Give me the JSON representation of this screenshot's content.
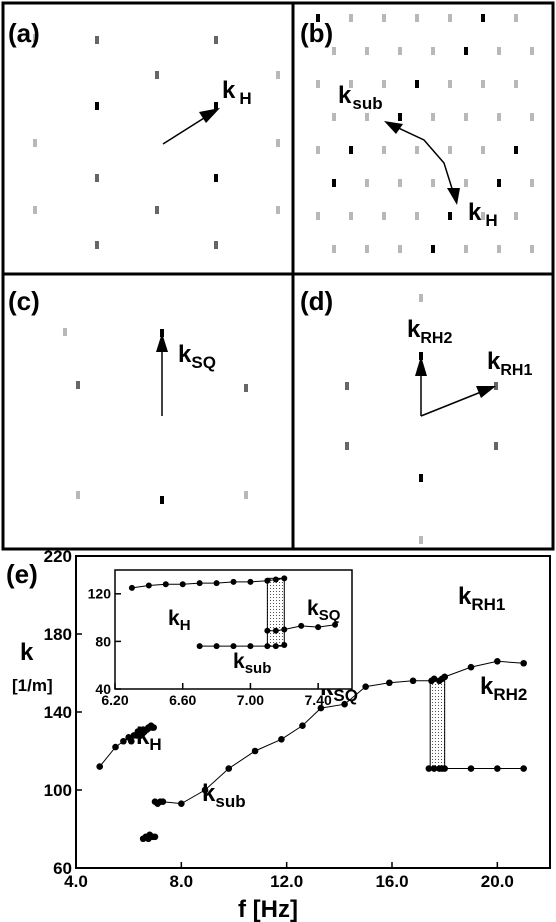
{
  "panels": {
    "a": {
      "label": "(a)",
      "vectors": [
        {
          "name": "k",
          "sub": "H"
        }
      ]
    },
    "b": {
      "label": "(b)",
      "vectors": [
        {
          "name": "k",
          "sub": "sub"
        },
        {
          "name": "k",
          "sub": "H"
        }
      ]
    },
    "c": {
      "label": "(c)",
      "vectors": [
        {
          "name": "k",
          "sub": "SQ"
        }
      ]
    },
    "d": {
      "label": "(d)",
      "vectors": [
        {
          "name": "k",
          "sub": "RH2"
        },
        {
          "name": "k",
          "sub": "RH1"
        }
      ]
    }
  },
  "chart_data": [
    {
      "type": "line",
      "panel_label": "(e)",
      "ylabel": "k",
      "ylabel_unit": "[1/m]",
      "xlabel": "f [Hz]",
      "xlim": [
        4.0,
        22.0
      ],
      "ylim": [
        60,
        220
      ],
      "xticks": [
        "4.0",
        "8.0",
        "12.0",
        "16.0",
        "20.0"
      ],
      "xtick_values": [
        4,
        8,
        12,
        16,
        20
      ],
      "yticks": [
        "60",
        "100",
        "140",
        "180",
        "220"
      ],
      "ytick_values": [
        60,
        100,
        140,
        180,
        220
      ],
      "series": [
        {
          "name": "k_H",
          "label": {
            "name": "k",
            "sub": "H"
          },
          "x": [
            4.9,
            5.5,
            5.8,
            6.0,
            6.1,
            6.2,
            6.3,
            6.35,
            6.45,
            6.55,
            6.6,
            6.7,
            6.75,
            6.8,
            6.85,
            6.9,
            6.95
          ],
          "y": [
            112,
            122,
            125,
            127,
            125,
            128,
            128,
            130,
            129,
            131,
            130,
            131,
            132,
            132,
            133,
            132,
            132
          ]
        },
        {
          "name": "k_sub",
          "label": {
            "name": "k",
            "sub": "sub"
          },
          "x": [
            6.55,
            6.65,
            6.75,
            6.8,
            6.9,
            7.0
          ],
          "y": [
            75,
            76,
            75,
            77,
            76,
            76
          ]
        },
        {
          "name": "k_SQ",
          "label": {
            "name": "k",
            "sub": "SQ"
          },
          "x": [
            7.0,
            7.1,
            7.2,
            7.3,
            8.0,
            8.9,
            9.8,
            10.8,
            11.8,
            12.6,
            13.3,
            14.2,
            15.0,
            15.9,
            16.8,
            17.5,
            17.6,
            17.8,
            17.9,
            18.0
          ],
          "y": [
            94,
            93,
            94,
            94,
            93,
            100,
            111,
            120,
            126,
            133,
            142,
            144,
            153,
            155,
            156,
            156,
            157,
            156,
            157,
            158
          ]
        },
        {
          "name": "k_RH1",
          "label": {
            "name": "k",
            "sub": "RH1"
          },
          "x": [
            18.0,
            19.0,
            20.0,
            21.0
          ],
          "y": [
            158,
            163,
            166,
            165
          ]
        },
        {
          "name": "k_RH2",
          "label": {
            "name": "k",
            "sub": "RH2"
          },
          "x": [
            17.4,
            17.6,
            17.8,
            17.9,
            18.0,
            19.0,
            20.0,
            21.0
          ],
          "y": [
            111,
            111,
            111,
            111,
            111,
            111,
            111,
            111
          ]
        }
      ],
      "hysteresis_band": {
        "x": [
          17.45,
          18.0
        ],
        "y": [
          111,
          157
        ]
      }
    },
    {
      "type": "line",
      "role": "inset",
      "xlim": [
        6.2,
        7.6
      ],
      "ylim": [
        40,
        140
      ],
      "xticks": [
        "6.20",
        "6.60",
        "7.00",
        "7.40"
      ],
      "xtick_values": [
        6.2,
        6.6,
        7.0,
        7.4
      ],
      "yticks": [
        "40",
        "80",
        "120"
      ],
      "ytick_values": [
        40,
        80,
        120
      ],
      "series": [
        {
          "name": "k_H",
          "label": {
            "name": "k",
            "sub": "H"
          },
          "x": [
            6.3,
            6.4,
            6.5,
            6.6,
            6.7,
            6.8,
            6.9,
            7.0,
            7.1,
            7.15,
            7.2
          ],
          "y": [
            125,
            127,
            128,
            128,
            129,
            129,
            130,
            130,
            131,
            132,
            133
          ]
        },
        {
          "name": "k_SQ",
          "label": {
            "name": "k",
            "sub": "SQ"
          },
          "x": [
            7.1,
            7.15,
            7.2,
            7.3,
            7.4,
            7.5
          ],
          "y": [
            89,
            89,
            90,
            93,
            92,
            94
          ]
        },
        {
          "name": "k_sub",
          "label": {
            "name": "k",
            "sub": "sub"
          },
          "x": [
            6.7,
            6.8,
            6.9,
            7.0,
            7.1,
            7.15,
            7.2
          ],
          "y": [
            76,
            76,
            76,
            76,
            76,
            76,
            77
          ]
        }
      ],
      "hysteresis_band": {
        "x": [
          7.1,
          7.2
        ],
        "y": [
          76,
          133
        ]
      }
    }
  ]
}
